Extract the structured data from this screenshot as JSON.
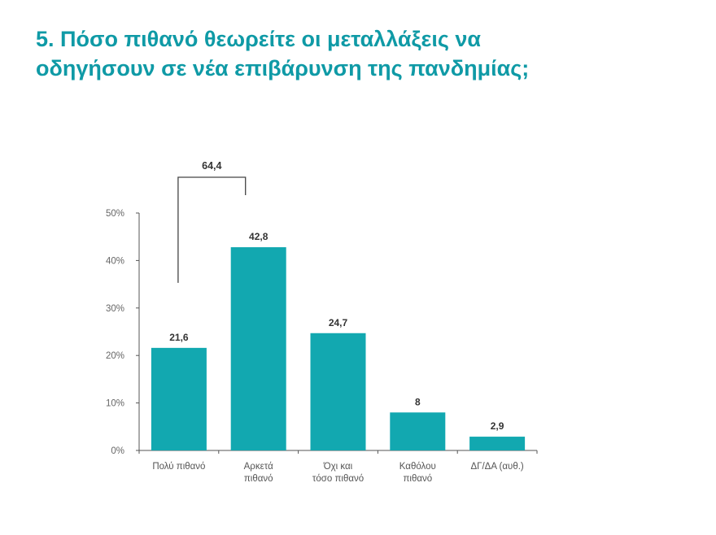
{
  "title_lines": [
    "5. Πόσο πιθανό θεωρείτε οι μεταλλάξεις να",
    "οδηγήσουν σε νέα επιβάρυνση της πανδημίας;"
  ],
  "colors": {
    "accent": "#0f9aa6",
    "bar": "#12a8b0",
    "axis": "#555555",
    "bracket": "#444444"
  },
  "chart_data": {
    "type": "bar",
    "title": "5. Πόσο πιθανό θεωρείτε οι μεταλλάξεις να οδηγήσουν σε νέα επιβάρυνση της πανδημίας;",
    "categories": [
      [
        "Πολύ πιθανό"
      ],
      [
        "Αρκετά",
        "πιθανό"
      ],
      [
        "Όχι και",
        "τόσο πιθανό"
      ],
      [
        "Καθόλου",
        "πιθανό"
      ],
      [
        "ΔΓ/ΔΑ (αυθ.)"
      ]
    ],
    "values": [
      21.6,
      42.8,
      24.7,
      8,
      2.9
    ],
    "value_labels": [
      "21,6",
      "42,8",
      "24,7",
      "8",
      "2,9"
    ],
    "ylim": [
      0,
      50
    ],
    "yticks": [
      0,
      10,
      20,
      30,
      40,
      50
    ],
    "ytick_labels": [
      "0%",
      "10%",
      "20%",
      "30%",
      "40%",
      "50%"
    ],
    "grid": false,
    "annotation": {
      "label": "64,4",
      "spans": [
        0,
        1
      ]
    }
  }
}
